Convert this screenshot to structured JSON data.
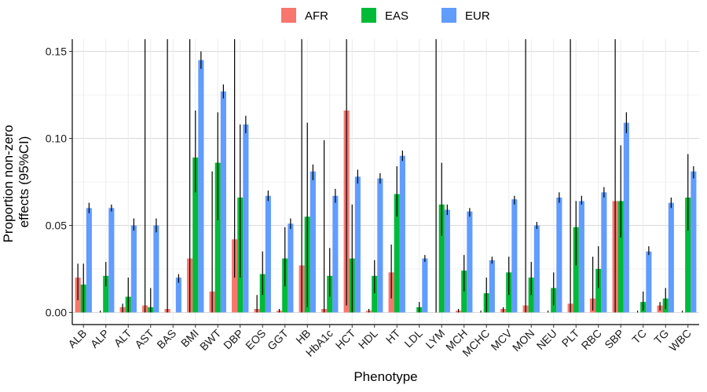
{
  "chart_data": {
    "type": "bar",
    "xlabel": "Phenotype",
    "ylabel_lines": [
      "Proportion non-zero",
      "effects (95%CI)"
    ],
    "ylim": [
      -0.007,
      0.157
    ],
    "yticks": [
      0.0,
      0.05,
      0.1,
      0.15
    ],
    "ytick_labels": [
      "0.00",
      "0.05",
      "0.10",
      "0.15"
    ],
    "grid": true,
    "legend_position": "top",
    "categories": [
      "ALB",
      "ALP",
      "ALT",
      "AST",
      "BAS",
      "BMI",
      "BWT",
      "DBP",
      "EOS",
      "GGT",
      "HB",
      "HbA1c",
      "HCT",
      "HDL",
      "HT",
      "LDL",
      "LYM",
      "MCH",
      "MCHC",
      "MCV",
      "MON",
      "NEU",
      "PLT",
      "RBC",
      "SBP",
      "TC",
      "TG",
      "WBC"
    ],
    "series": [
      {
        "name": "AFR",
        "color": "#F8766D",
        "values": [
          0.02,
          0.0,
          0.003,
          0.004,
          0.002,
          0.031,
          0.012,
          0.042,
          0.002,
          0.001,
          0.027,
          0.002,
          0.116,
          0.001,
          0.023,
          0.0,
          0.0,
          0.001,
          0.0,
          0.002,
          0.004,
          0.0,
          0.005,
          0.008,
          0.064,
          0.0,
          0.004,
          0.0
        ],
        "ci_low": [
          0.007,
          0.0,
          0.0,
          0.0,
          0.0,
          0.0,
          0.0,
          0.02,
          0.0,
          0.0,
          0.0,
          0.0,
          0.004,
          0.0,
          0.008,
          0.0,
          0.0,
          0.0,
          0.0,
          0.0,
          0.0,
          0.0,
          0.0,
          0.001,
          0.0,
          0.0,
          0.001,
          0.0
        ],
        "ci_high": [
          0.028,
          0.001,
          0.005,
          0.157,
          0.157,
          0.157,
          0.081,
          0.157,
          0.01,
          0.002,
          0.157,
          0.099,
          0.157,
          0.002,
          0.039,
          0.0,
          0.157,
          0.002,
          0.001,
          0.003,
          0.157,
          0.001,
          0.157,
          0.032,
          0.157,
          0.001,
          0.006,
          0.001
        ]
      },
      {
        "name": "EAS",
        "color": "#00BA38",
        "values": [
          0.016,
          0.021,
          0.009,
          0.003,
          0.0,
          0.089,
          0.086,
          0.066,
          0.022,
          0.031,
          0.055,
          0.021,
          0.031,
          0.021,
          0.068,
          0.003,
          0.062,
          0.024,
          0.011,
          0.023,
          0.02,
          0.014,
          0.049,
          0.025,
          0.064,
          0.006,
          0.008,
          0.066
        ],
        "ci_low": [
          0.0,
          0.015,
          0.0,
          0.0,
          0.0,
          0.069,
          0.053,
          0.02,
          0.01,
          0.015,
          0.003,
          0.009,
          0.0,
          0.011,
          0.055,
          0.0,
          0.044,
          0.012,
          0.0,
          0.01,
          0.01,
          0.004,
          0.027,
          0.014,
          0.043,
          0.001,
          0.002,
          0.047
        ],
        "ci_high": [
          0.028,
          0.029,
          0.02,
          0.014,
          0.0,
          0.116,
          0.115,
          0.108,
          0.035,
          0.049,
          0.109,
          0.037,
          0.062,
          0.03,
          0.084,
          0.006,
          0.086,
          0.033,
          0.02,
          0.032,
          0.029,
          0.023,
          0.064,
          0.038,
          0.096,
          0.012,
          0.014,
          0.091
        ]
      },
      {
        "name": "EUR",
        "color": "#619CFF",
        "values": [
          0.06,
          0.06,
          0.05,
          0.05,
          0.02,
          0.145,
          0.127,
          0.108,
          0.067,
          0.051,
          0.081,
          0.067,
          0.078,
          0.077,
          0.09,
          0.031,
          0.059,
          0.058,
          0.03,
          0.065,
          0.05,
          0.066,
          0.064,
          0.069,
          0.109,
          0.035,
          0.063,
          0.081
        ],
        "ci_low": [
          0.057,
          0.058,
          0.047,
          0.046,
          0.017,
          0.14,
          0.123,
          0.103,
          0.064,
          0.048,
          0.076,
          0.063,
          0.074,
          0.074,
          0.087,
          0.029,
          0.056,
          0.055,
          0.028,
          0.062,
          0.048,
          0.063,
          0.062,
          0.066,
          0.103,
          0.033,
          0.06,
          0.077
        ],
        "ci_high": [
          0.063,
          0.062,
          0.054,
          0.054,
          0.022,
          0.15,
          0.131,
          0.113,
          0.07,
          0.054,
          0.085,
          0.071,
          0.082,
          0.08,
          0.093,
          0.033,
          0.062,
          0.06,
          0.032,
          0.067,
          0.052,
          0.069,
          0.067,
          0.072,
          0.115,
          0.038,
          0.066,
          0.084
        ]
      }
    ]
  }
}
